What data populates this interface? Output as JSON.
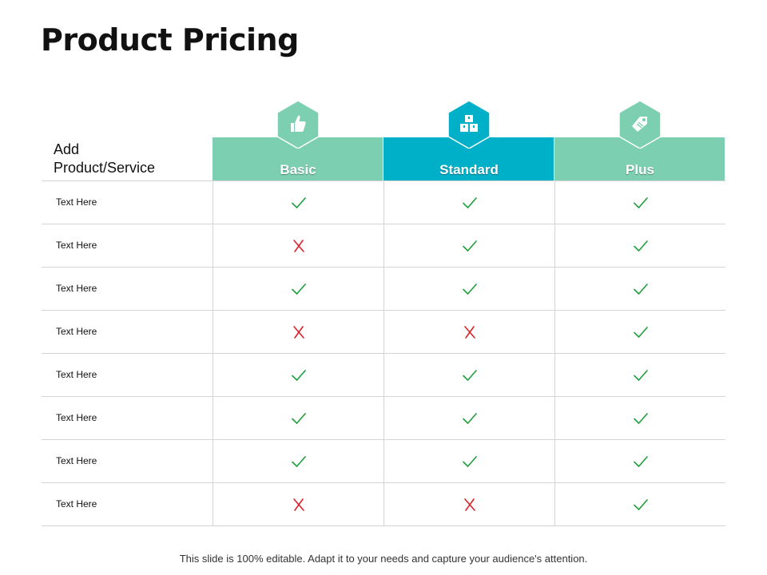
{
  "slide": {
    "title": "Product Pricing",
    "footer": "This slide is 100% editable. Adapt it to your needs and capture your audience's attention."
  },
  "table": {
    "row_header": "Add\nProduct/Service",
    "plans": [
      {
        "name": "Basic",
        "color": "#7dcfb2",
        "icon": "thumbs-up-icon"
      },
      {
        "name": "Standard",
        "color": "#00b0c8",
        "icon": "boxes-icon"
      },
      {
        "name": "Plus",
        "color": "#7dcfb2",
        "icon": "price-tag-icon"
      }
    ],
    "rows": [
      {
        "label": "Text Here",
        "values": [
          "check",
          "check",
          "check"
        ]
      },
      {
        "label": "Text Here",
        "values": [
          "cross",
          "check",
          "check"
        ]
      },
      {
        "label": "Text Here",
        "values": [
          "check",
          "check",
          "check"
        ]
      },
      {
        "label": "Text Here",
        "values": [
          "cross",
          "cross",
          "check"
        ]
      },
      {
        "label": "Text Here",
        "values": [
          "check",
          "check",
          "check"
        ]
      },
      {
        "label": "Text Here",
        "values": [
          "check",
          "check",
          "check"
        ]
      },
      {
        "label": "Text Here",
        "values": [
          "check",
          "check",
          "check"
        ]
      },
      {
        "label": "Text Here",
        "values": [
          "cross",
          "cross",
          "check"
        ]
      }
    ],
    "check_color": "#1e9e3a",
    "cross_color": "#d9232d"
  }
}
